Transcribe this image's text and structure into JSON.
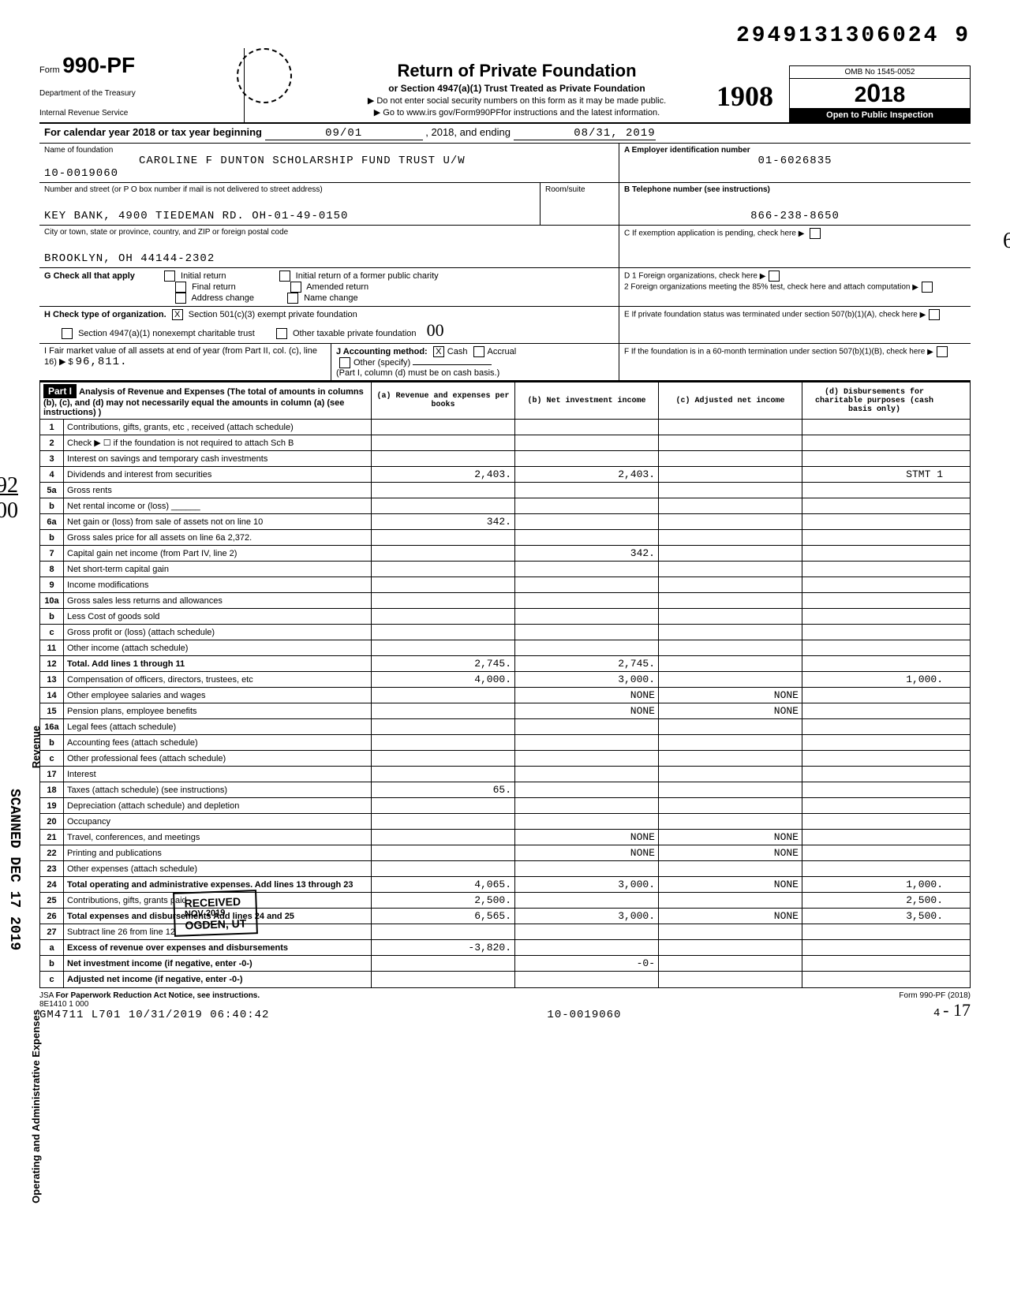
{
  "top_tracking": "2949131306024 9",
  "form": {
    "prefix": "Form",
    "number": "990-PF",
    "dept1": "Department of the Treasury",
    "dept2": "Internal Revenue Service"
  },
  "header": {
    "title": "Return of Private Foundation",
    "subtitle": "or Section 4947(a)(1) Trust Treated as Private Foundation",
    "warn": "▶ Do not enter social security numbers on this form as it may be made public.",
    "goto": "▶ Go to www.irs gov/Form990PFfor instructions and the latest information."
  },
  "hand_year": "1908",
  "omb": "OMB No 1545-0052",
  "year_display": "2018",
  "open": "Open to Public Inspection",
  "cal_line": {
    "prefix": "For calendar year 2018 or tax year beginning",
    "start": "09/01",
    "mid": ", 2018, and ending",
    "end": "08/31, 2019"
  },
  "name_label": "Name of foundation",
  "name": "CAROLINE F DUNTON SCHOLARSHIP FUND TRUST U/W",
  "name2": "10-0019060",
  "ein_label": "A   Employer identification number",
  "ein": "01-6026835",
  "addr_label": "Number and street (or P O  box number if mail is not delivered to street address)",
  "room_label": "Room/suite",
  "phone_label": "B   Telephone number (see instructions)",
  "addr": "KEY BANK, 4900 TIEDEMAN RD. OH-01-49-0150",
  "phone": "866-238-8650",
  "city_label": "City or town, state or province, country, and ZIP or foreign postal code",
  "city": "BROOKLYN, OH 44144-2302",
  "c_label": "C   If exemption application is pending, check here",
  "g_label": "G  Check all that apply",
  "g_opts": [
    "Initial return",
    "Final return",
    "Address change",
    "Initial return of a former public charity",
    "Amended return",
    "Name change"
  ],
  "d_label": "D  1  Foreign organizations, check here",
  "d2_label": "2  Foreign organizations meeting the 85% test, check here and attach computation",
  "h_label": "H  Check type of organization.",
  "h_opt1": "Section 501(c)(3) exempt private foundation",
  "h_opt2": "Section 4947(a)(1) nonexempt charitable trust",
  "h_opt3": "Other taxable private foundation",
  "hand_00": "00",
  "e_label": "E   If private foundation status was terminated under section 507(b)(1)(A), check here",
  "i_label": "I   Fair market value of all assets at end of year (from Part II, col. (c), line 16) ▶ $",
  "i_value": "96,811.",
  "j_label": "J Accounting method:",
  "j_cash": "Cash",
  "j_accrual": "Accrual",
  "j_other": "Other (specify)",
  "j_note": "(Part I, column (d) must be on cash basis.)",
  "f_label": "F   If the foundation is in a 60-month termination under section 507(b)(1)(B), check here",
  "part1": "Part I",
  "part1_title": "Analysis of Revenue and Expenses (The total of amounts in columns (b), (c), and (d) may not necessarily equal the amounts in column (a) (see instructions) )",
  "cols": {
    "a": "(a) Revenue and expenses per books",
    "b": "(b) Net investment income",
    "c": "(c) Adjusted net income",
    "d": "(d) Disbursements for charitable purposes (cash basis only)"
  },
  "vert_revenue": "Revenue",
  "vert_expenses": "Operating and Administrative Expenses",
  "vert_scanned": "SCANNED DEC 17 2019",
  "hand_92_00": "92\n00",
  "hand_6": "6",
  "rows": [
    {
      "n": "1",
      "d": "Contributions, gifts, grants, etc , received (attach schedule)",
      "a": "",
      "b": "",
      "c": "",
      "dd": ""
    },
    {
      "n": "2",
      "d": "Check ▶ ☐ if the foundation is not required to attach Sch B",
      "a": "",
      "b": "",
      "c": "",
      "dd": ""
    },
    {
      "n": "3",
      "d": "Interest on savings and temporary cash investments",
      "a": "",
      "b": "",
      "c": "",
      "dd": ""
    },
    {
      "n": "4",
      "d": "Dividends and interest from securities",
      "a": "2,403.",
      "b": "2,403.",
      "c": "",
      "dd": "STMT 1"
    },
    {
      "n": "5a",
      "d": "Gross rents",
      "a": "",
      "b": "",
      "c": "",
      "dd": ""
    },
    {
      "n": "b",
      "d": "Net rental income or (loss) ______",
      "a": "",
      "b": "",
      "c": "",
      "dd": ""
    },
    {
      "n": "6a",
      "d": "Net gain or (loss) from sale of assets not on line 10",
      "a": "342.",
      "b": "",
      "c": "",
      "dd": ""
    },
    {
      "n": "b",
      "d": "Gross sales price for all assets on line 6a        2,372.",
      "a": "",
      "b": "",
      "c": "",
      "dd": "",
      "gray": true
    },
    {
      "n": "7",
      "d": "Capital gain net income (from Part IV, line 2)",
      "a": "",
      "b": "342.",
      "c": "",
      "dd": ""
    },
    {
      "n": "8",
      "d": "Net short-term capital gain",
      "a": "",
      "b": "",
      "c": "",
      "dd": ""
    },
    {
      "n": "9",
      "d": "Income modifications",
      "a": "",
      "b": "",
      "c": "",
      "dd": ""
    },
    {
      "n": "10a",
      "d": "Gross sales less returns and allowances",
      "a": "",
      "b": "",
      "c": "",
      "dd": ""
    },
    {
      "n": "b",
      "d": "Less Cost of goods sold",
      "a": "",
      "b": "",
      "c": "",
      "dd": ""
    },
    {
      "n": "c",
      "d": "Gross profit or (loss) (attach schedule)",
      "a": "",
      "b": "",
      "c": "",
      "dd": ""
    },
    {
      "n": "11",
      "d": "Other income (attach schedule)",
      "a": "",
      "b": "",
      "c": "",
      "dd": ""
    },
    {
      "n": "12",
      "d": "Total. Add lines 1 through 11",
      "a": "2,745.",
      "b": "2,745.",
      "c": "",
      "dd": "",
      "bold": true
    },
    {
      "n": "13",
      "d": "Compensation of officers, directors, trustees, etc",
      "a": "4,000.",
      "b": "3,000.",
      "c": "",
      "dd": "1,000."
    },
    {
      "n": "14",
      "d": "Other employee salaries and wages",
      "a": "",
      "b": "NONE",
      "c": "NONE",
      "dd": ""
    },
    {
      "n": "15",
      "d": "Pension plans, employee benefits",
      "a": "",
      "b": "NONE",
      "c": "NONE",
      "dd": ""
    },
    {
      "n": "16a",
      "d": "Legal fees (attach schedule)",
      "a": "",
      "b": "",
      "c": "",
      "dd": ""
    },
    {
      "n": "b",
      "d": "Accounting fees (attach schedule)",
      "a": "",
      "b": "",
      "c": "",
      "dd": ""
    },
    {
      "n": "c",
      "d": "Other professional fees (attach schedule)",
      "a": "",
      "b": "",
      "c": "",
      "dd": ""
    },
    {
      "n": "17",
      "d": "Interest",
      "a": "",
      "b": "",
      "c": "",
      "dd": ""
    },
    {
      "n": "18",
      "d": "Taxes (attach schedule) (see instructions)",
      "a": "65.",
      "b": "",
      "c": "",
      "dd": ""
    },
    {
      "n": "19",
      "d": "Depreciation (attach schedule) and depletion",
      "a": "",
      "b": "",
      "c": "",
      "dd": ""
    },
    {
      "n": "20",
      "d": "Occupancy",
      "a": "",
      "b": "",
      "c": "",
      "dd": ""
    },
    {
      "n": "21",
      "d": "Travel, conferences, and meetings",
      "a": "",
      "b": "NONE",
      "c": "NONE",
      "dd": ""
    },
    {
      "n": "22",
      "d": "Printing and publications",
      "a": "",
      "b": "NONE",
      "c": "NONE",
      "dd": ""
    },
    {
      "n": "23",
      "d": "Other expenses (attach schedule)",
      "a": "",
      "b": "",
      "c": "",
      "dd": ""
    },
    {
      "n": "24",
      "d": "Total operating and administrative expenses. Add lines 13 through 23",
      "a": "4,065.",
      "b": "3,000.",
      "c": "NONE",
      "dd": "1,000.",
      "bold": true
    },
    {
      "n": "25",
      "d": "Contributions, gifts, grants paid",
      "a": "2,500.",
      "b": "",
      "c": "",
      "dd": "2,500."
    },
    {
      "n": "26",
      "d": "Total expenses and disbursements Add lines 24 and 25",
      "a": "6,565.",
      "b": "3,000.",
      "c": "NONE",
      "dd": "3,500.",
      "bold": true
    },
    {
      "n": "27",
      "d": "Subtract line 26 from line 12",
      "a": "",
      "b": "",
      "c": "",
      "dd": ""
    },
    {
      "n": "a",
      "d": "Excess of revenue over expenses and disbursements",
      "a": "-3,820.",
      "b": "",
      "c": "",
      "dd": "",
      "bold": true
    },
    {
      "n": "b",
      "d": "Net investment income (if negative, enter -0-)",
      "a": "",
      "b": "-0-",
      "c": "",
      "dd": "",
      "bold": true
    },
    {
      "n": "c",
      "d": "Adjusted net income (if negative, enter -0-)",
      "a": "",
      "b": "",
      "c": "",
      "dd": "",
      "bold": true
    }
  ],
  "received": {
    "l1": "RECEIVED",
    "l2": "NOV    2019",
    "l3": "OGDEN, UT"
  },
  "footer": {
    "jsa": "JSA",
    "notice": "For Paperwork Reduction Act Notice, see instructions.",
    "code": "8E1410 1 000",
    "stamp": "GM4711 L701 10/31/2019 06:40:42",
    "mid": "10-0019060",
    "page": "4",
    "form": "Form 990-PF (2018)"
  },
  "hand_bottom": "- 17"
}
